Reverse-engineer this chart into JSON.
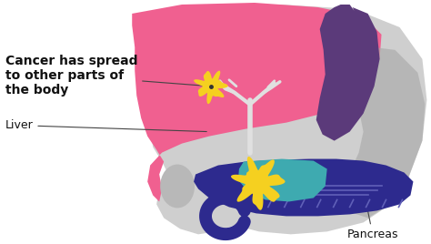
{
  "bg_color": "#ffffff",
  "liver_color": "#F06090",
  "stomach_color": "#5B3A7A",
  "gallbladder_color": "#AAAAAA",
  "bowel_bg_color": "#BBBBBB",
  "pancreas_color": "#2D2A8E",
  "cancer_tumor_color": "#F5D020",
  "cancer_spot_color": "#F5D020",
  "teal_color": "#3EAAB0",
  "duct_color": "#E0E0E0",
  "text_cancer": "Cancer has spread\nto other parts of\nthe body",
  "text_liver": "Liver",
  "text_pancreas": "Pancreas",
  "title_fontsize": 10,
  "label_fontsize": 9,
  "arrow_color": "#444444"
}
